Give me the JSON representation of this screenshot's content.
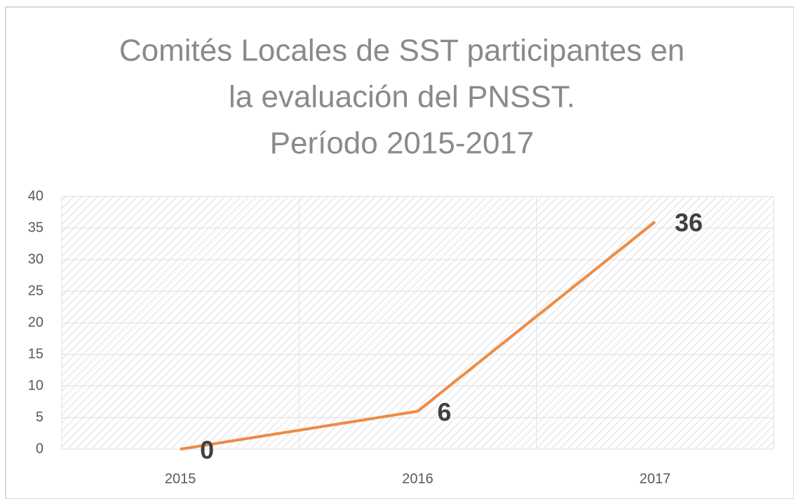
{
  "chart_data": {
    "type": "line",
    "title": [
      "Comités Locales de SST participantes en",
      "la evaluación del PNSST.",
      "Período 2015-2017"
    ],
    "categories": [
      "2015",
      "2016",
      "2017"
    ],
    "values": [
      0,
      6,
      36
    ],
    "color": "#ed8b45",
    "ylim": [
      0,
      40
    ],
    "yticks": [
      0,
      5,
      10,
      15,
      20,
      25,
      30,
      35,
      40
    ],
    "grid": true,
    "data_labels": true
  }
}
